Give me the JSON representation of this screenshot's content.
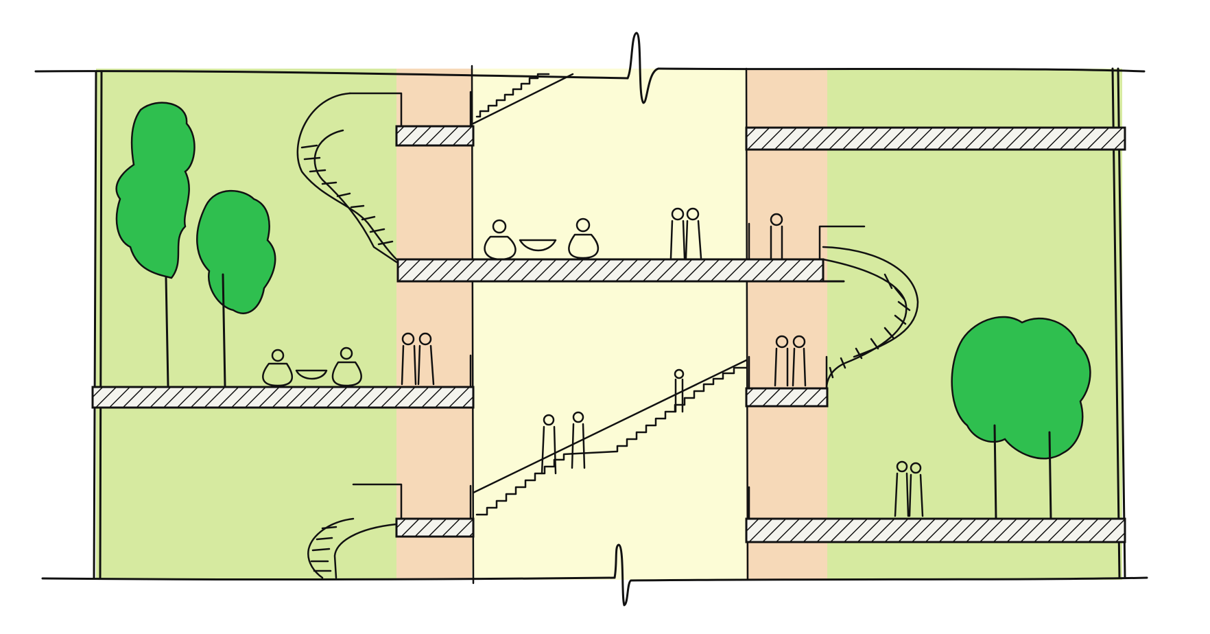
{
  "drawing": {
    "type": "architectural-section-sketch",
    "colors": {
      "garden_zone": "#d6eaa0",
      "circulation_band": "#f6d9b8",
      "atrium": "#fcfcd6",
      "tree_foliage": "#2fbf4f",
      "ink": "#111111",
      "paper": "#ffffff"
    },
    "levels": 3,
    "figures_present": true,
    "trees_present": true
  }
}
